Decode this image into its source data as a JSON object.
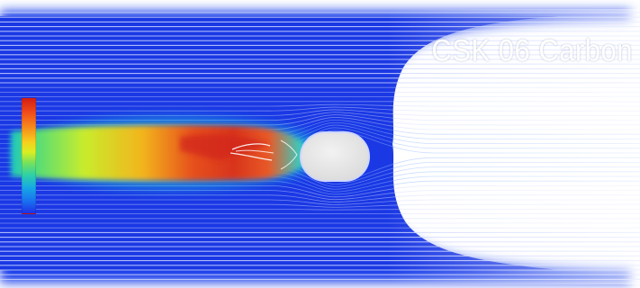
{
  "title": "CSK 06 Carbon",
  "colors": {
    "background": "#ffffff",
    "streamline_blue": "#1a3fe6",
    "wake_red": "#e0351a",
    "wake_yellow": "#f2e028",
    "wake_green": "#5fe06a",
    "body_fill": "#e6e6e6"
  },
  "legend": {
    "header": "",
    "labels": [
      "",
      "",
      "",
      "",
      "",
      "",
      "",
      "",
      "",
      "",
      "",
      ""
    ],
    "footer": ""
  }
}
